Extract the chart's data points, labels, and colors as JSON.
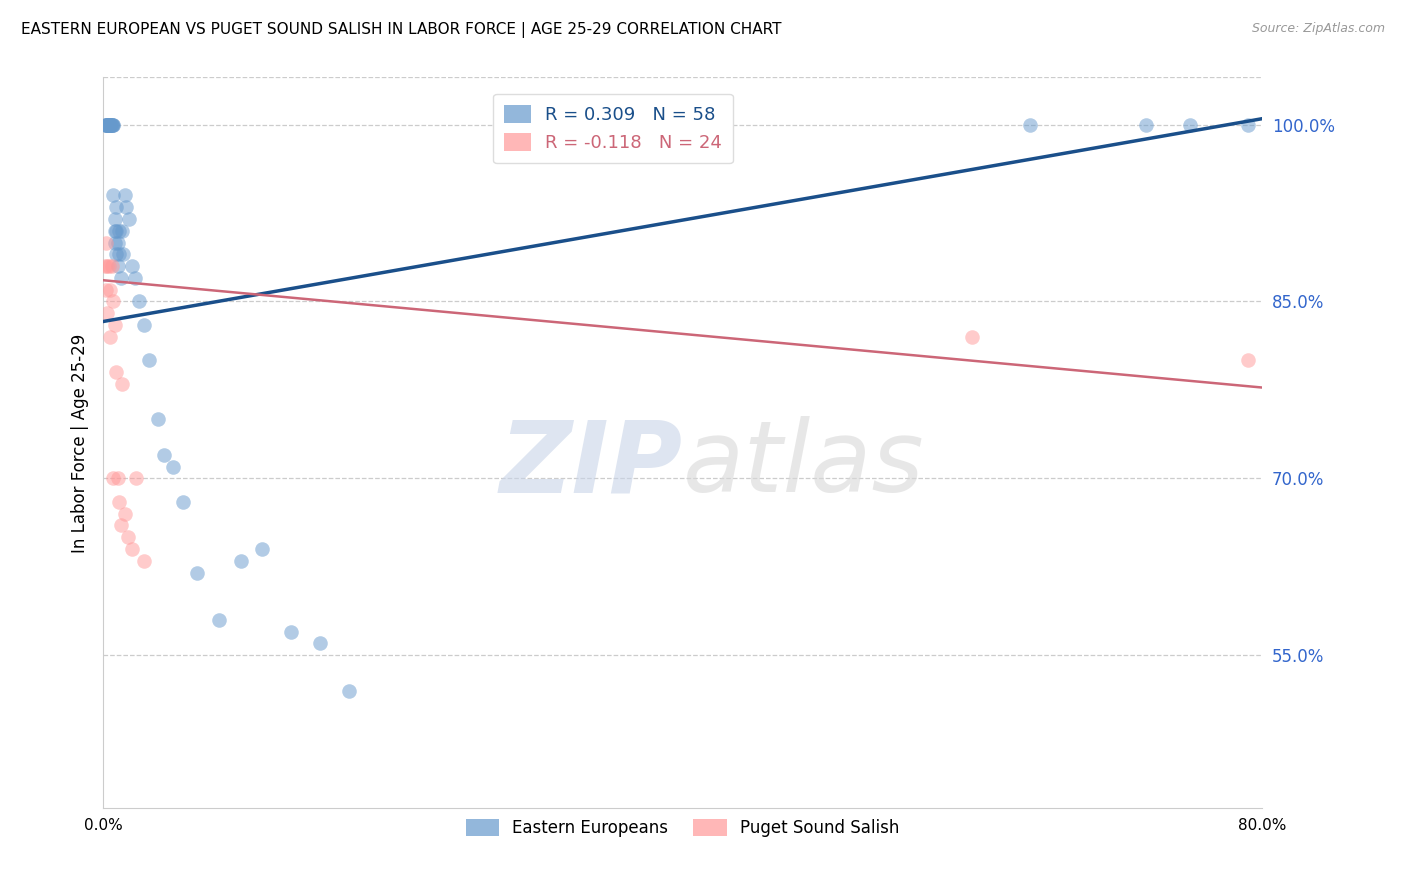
{
  "title": "EASTERN EUROPEAN VS PUGET SOUND SALISH IN LABOR FORCE | AGE 25-29 CORRELATION CHART",
  "source": "Source: ZipAtlas.com",
  "ylabel": "In Labor Force | Age 25-29",
  "ytick_labels": [
    "100.0%",
    "85.0%",
    "70.0%",
    "55.0%"
  ],
  "xlim": [
    0.0,
    0.8
  ],
  "ylim": [
    0.42,
    1.04
  ],
  "yticks": [
    1.0,
    0.85,
    0.7,
    0.55
  ],
  "blue_scatter_x": [
    0.001,
    0.002,
    0.002,
    0.003,
    0.003,
    0.003,
    0.003,
    0.004,
    0.004,
    0.004,
    0.005,
    0.005,
    0.005,
    0.005,
    0.005,
    0.006,
    0.006,
    0.006,
    0.007,
    0.007,
    0.007,
    0.008,
    0.008,
    0.008,
    0.009,
    0.009,
    0.009,
    0.01,
    0.01,
    0.011,
    0.011,
    0.012,
    0.013,
    0.014,
    0.015,
    0.016,
    0.018,
    0.02,
    0.022,
    0.025,
    0.028,
    0.032,
    0.038,
    0.042,
    0.048,
    0.055,
    0.065,
    0.08,
    0.095,
    0.11,
    0.13,
    0.15,
    0.17,
    0.43,
    0.64,
    0.72,
    0.75,
    0.79
  ],
  "blue_scatter_y": [
    1.0,
    1.0,
    1.0,
    1.0,
    1.0,
    1.0,
    1.0,
    1.0,
    1.0,
    1.0,
    1.0,
    1.0,
    1.0,
    1.0,
    1.0,
    1.0,
    1.0,
    1.0,
    1.0,
    1.0,
    0.94,
    0.92,
    0.91,
    0.9,
    0.93,
    0.91,
    0.89,
    0.9,
    0.88,
    0.91,
    0.89,
    0.87,
    0.91,
    0.89,
    0.94,
    0.93,
    0.92,
    0.88,
    0.87,
    0.85,
    0.83,
    0.8,
    0.75,
    0.72,
    0.71,
    0.68,
    0.62,
    0.58,
    0.63,
    0.64,
    0.57,
    0.56,
    0.52,
    1.0,
    1.0,
    1.0,
    1.0,
    1.0
  ],
  "pink_scatter_x": [
    0.001,
    0.002,
    0.002,
    0.003,
    0.003,
    0.004,
    0.005,
    0.005,
    0.006,
    0.007,
    0.007,
    0.008,
    0.009,
    0.01,
    0.011,
    0.012,
    0.013,
    0.015,
    0.017,
    0.02,
    0.023,
    0.028,
    0.6,
    0.79
  ],
  "pink_scatter_y": [
    0.88,
    0.9,
    0.86,
    0.88,
    0.84,
    0.88,
    0.86,
    0.82,
    0.88,
    0.85,
    0.7,
    0.83,
    0.79,
    0.7,
    0.68,
    0.66,
    0.78,
    0.67,
    0.65,
    0.64,
    0.7,
    0.63,
    0.82,
    0.8
  ],
  "blue_line_x": [
    0.0,
    0.8
  ],
  "blue_line_y": [
    0.833,
    1.005
  ],
  "pink_line_x": [
    0.0,
    0.8
  ],
  "pink_line_y": [
    0.868,
    0.777
  ],
  "blue_color": "#6699CC",
  "pink_color": "#FF9999",
  "blue_line_color": "#1a4f8a",
  "pink_line_color": "#cc6677",
  "legend_R_blue": "R = 0.309",
  "legend_N_blue": "N = 58",
  "legend_R_pink": "R = -0.118",
  "legend_N_pink": "N = 24",
  "watermark_zip": "ZIP",
  "watermark_atlas": "atlas",
  "grid_color": "#cccccc",
  "background_color": "#ffffff",
  "xtick_left_label": "0.0%",
  "xtick_right_label": "80.0%"
}
